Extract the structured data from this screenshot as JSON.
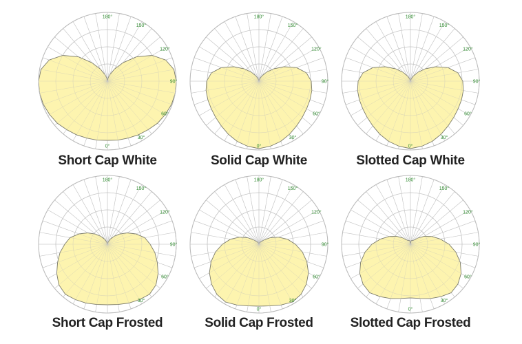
{
  "colors": {
    "grid": "#c4c4c4",
    "outline": "#7a7a6a",
    "fill": "#fdf3a6",
    "tick": "#2f8a2f",
    "title": "#222222"
  },
  "chart_data": [
    {
      "type": "polar",
      "title": "Short Cap White",
      "angle_ticks": [
        "0°",
        "30°",
        "60°",
        "90°",
        "120°",
        "150°",
        "180°"
      ],
      "rlim": [
        0,
        1
      ],
      "series": [
        {
          "angles": [
            0,
            10,
            20,
            30,
            40,
            50,
            60,
            70,
            80,
            90,
            100,
            110,
            120,
            130,
            140,
            150,
            160,
            170,
            180
          ],
          "values": [
            0.86,
            0.87,
            0.88,
            0.9,
            0.92,
            0.95,
            0.97,
            0.99,
            1.0,
            1.0,
            0.98,
            0.9,
            0.75,
            0.55,
            0.35,
            0.2,
            0.1,
            0.04,
            0.0
          ]
        }
      ]
    },
    {
      "type": "polar",
      "title": "Solid Cap White",
      "angle_ticks": [
        "0°",
        "30°",
        "60°",
        "90°",
        "120°",
        "150°",
        "180°"
      ],
      "rlim": [
        0,
        1
      ],
      "series": [
        {
          "angles": [
            0,
            10,
            20,
            30,
            40,
            50,
            60,
            70,
            80,
            90,
            100,
            110,
            120,
            130,
            140,
            150,
            160,
            170,
            180
          ],
          "values": [
            0.98,
            0.96,
            0.93,
            0.89,
            0.85,
            0.82,
            0.8,
            0.79,
            0.78,
            0.76,
            0.7,
            0.58,
            0.42,
            0.28,
            0.17,
            0.09,
            0.04,
            0.01,
            0.0
          ]
        }
      ]
    },
    {
      "type": "polar",
      "title": "Slotted Cap White",
      "angle_ticks": [
        "0°",
        "30°",
        "60°",
        "90°",
        "120°",
        "150°",
        "180°"
      ],
      "rlim": [
        0,
        1
      ],
      "series": [
        {
          "angles": [
            0,
            10,
            20,
            30,
            40,
            50,
            60,
            70,
            80,
            90,
            100,
            110,
            120,
            130,
            140,
            150,
            160,
            170,
            180
          ],
          "values": [
            0.98,
            0.96,
            0.93,
            0.89,
            0.85,
            0.82,
            0.8,
            0.79,
            0.78,
            0.76,
            0.7,
            0.58,
            0.42,
            0.28,
            0.17,
            0.09,
            0.04,
            0.01,
            0.0
          ]
        }
      ]
    },
    {
      "type": "polar",
      "title": "Short Cap Frosted",
      "angle_ticks": [
        "30°",
        "60°",
        "90°",
        "120°",
        "150°",
        "180°"
      ],
      "rlim": [
        0,
        1
      ],
      "series": [
        {
          "angles": [
            0,
            10,
            20,
            30,
            40,
            50,
            60,
            70,
            80,
            90,
            100,
            110,
            120,
            130,
            140,
            150,
            160,
            170,
            180
          ],
          "values": [
            0.88,
            0.89,
            0.91,
            0.93,
            0.95,
            0.92,
            0.85,
            0.77,
            0.7,
            0.62,
            0.55,
            0.44,
            0.33,
            0.23,
            0.15,
            0.09,
            0.04,
            0.01,
            0.0
          ]
        }
      ]
    },
    {
      "type": "polar",
      "title": "Solid Cap Frosted",
      "angle_ticks": [
        "0°",
        "30°",
        "60°",
        "90°",
        "120°",
        "150°",
        "180°"
      ],
      "rlim": [
        0,
        1
      ],
      "series": [
        {
          "angles": [
            0,
            10,
            20,
            30,
            40,
            50,
            60,
            70,
            80,
            90,
            100,
            110,
            120,
            130,
            140,
            150,
            160,
            170,
            180
          ],
          "values": [
            0.9,
            0.91,
            0.94,
            0.97,
            0.95,
            0.9,
            0.83,
            0.74,
            0.64,
            0.53,
            0.42,
            0.3,
            0.19,
            0.1,
            0.05,
            0.03,
            0.02,
            0.01,
            0.0
          ]
        }
      ]
    },
    {
      "type": "polar",
      "title": "Slotted Cap Frosted",
      "angle_ticks": [
        "0°",
        "30°",
        "60°",
        "90°",
        "120°",
        "150°",
        "180°"
      ],
      "rlim": [
        0,
        1
      ],
      "series": [
        {
          "angles": [
            0,
            10,
            20,
            30,
            40,
            50,
            60,
            70,
            80,
            90,
            100,
            110,
            120,
            130,
            140,
            150,
            160,
            170,
            180
          ],
          "values": [
            0.78,
            0.8,
            0.84,
            0.88,
            0.92,
            0.9,
            0.85,
            0.77,
            0.67,
            0.56,
            0.44,
            0.33,
            0.23,
            0.14,
            0.08,
            0.06,
            0.06,
            0.05,
            0.0
          ]
        }
      ]
    }
  ]
}
